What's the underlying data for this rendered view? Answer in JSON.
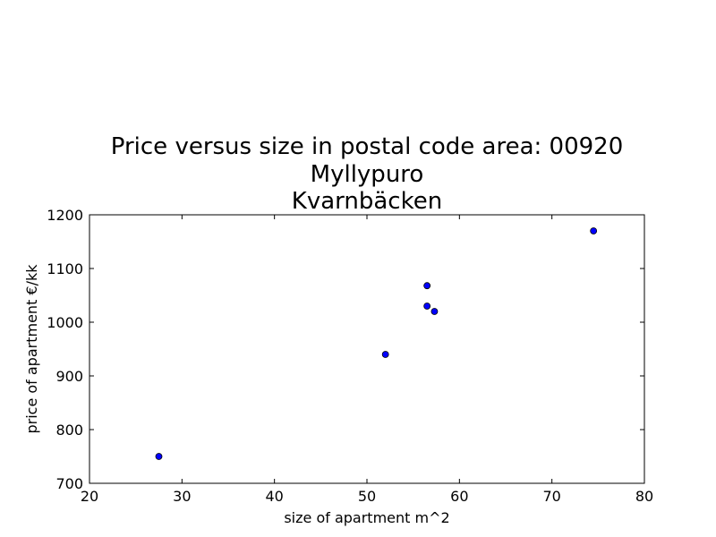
{
  "chart_data": {
    "type": "scatter",
    "title_lines": [
      "Price versus size in postal code area: 00920",
      "Myllypuro",
      "Kvarnbäcken"
    ],
    "xlabel": "size of apartment m^2",
    "ylabel": "price of apartment €/kk",
    "xlim": [
      20,
      80
    ],
    "ylim": [
      700,
      1200
    ],
    "xticks": [
      20,
      30,
      40,
      50,
      60,
      70,
      80
    ],
    "yticks": [
      700,
      800,
      900,
      1000,
      1100,
      1200
    ],
    "grid": false,
    "marker_color": "#0000ff",
    "points": [
      {
        "x": 27.5,
        "y": 750
      },
      {
        "x": 52.0,
        "y": 940
      },
      {
        "x": 56.5,
        "y": 1030
      },
      {
        "x": 56.5,
        "y": 1068
      },
      {
        "x": 57.3,
        "y": 1020
      },
      {
        "x": 74.5,
        "y": 1170
      }
    ]
  }
}
